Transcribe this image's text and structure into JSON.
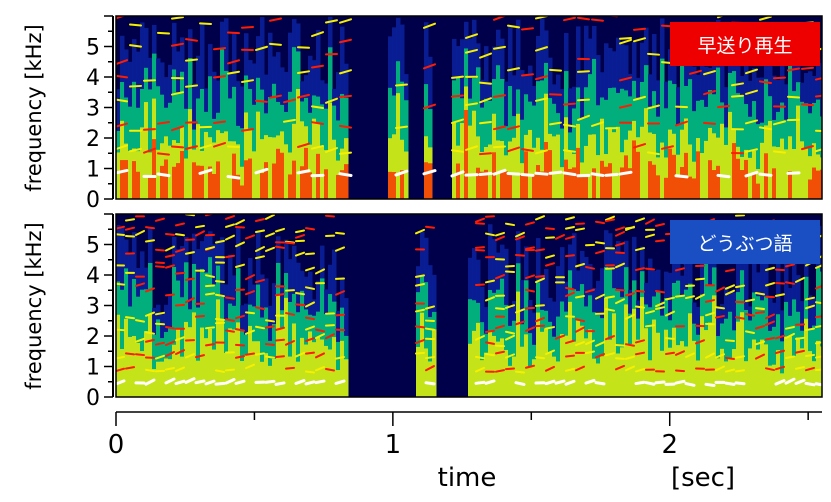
{
  "chart_data": [
    {
      "type": "heatmap",
      "panel_label": "早送り再生",
      "ylabel": "frequency [kHz]",
      "yticks": [
        "0",
        "1",
        "2",
        "3",
        "4",
        "5"
      ],
      "ylim": [
        0,
        6
      ],
      "xlim": [
        0,
        2.55
      ],
      "silent_gaps_sec": [
        [
          0.83,
          0.98
        ],
        [
          1.05,
          1.1
        ],
        [
          1.13,
          1.2
        ]
      ],
      "harmonic_f0_khz_approx": 0.8
    },
    {
      "type": "heatmap",
      "panel_label": "どうぶつ語",
      "ylabel": "frequency [kHz]",
      "yticks": [
        "0",
        "1",
        "2",
        "3",
        "4",
        "5"
      ],
      "ylim": [
        0,
        6
      ],
      "xlim": [
        0,
        2.55
      ],
      "silent_gaps_sec": [
        [
          0.83,
          1.07
        ],
        [
          1.15,
          1.27
        ]
      ],
      "harmonic_f0_khz_approx": 0.45
    }
  ],
  "xaxis": {
    "label": "time",
    "unit": "[sec]",
    "ticks": [
      {
        "value": 0,
        "label": "0"
      },
      {
        "value": 1,
        "label": "1"
      },
      {
        "value": 2,
        "label": "2"
      }
    ],
    "minor_ticks": [
      0.5,
      1.5,
      2.5
    ]
  },
  "colors": {
    "noise_floor": "#000010",
    "low": "#0a1f9a",
    "mid": "#00c878",
    "high": "#f6f000",
    "peak": "#ff1c00",
    "max": "#ffffff",
    "badge_top": "#ee0000",
    "badge_bottom": "#1a4fc4"
  }
}
